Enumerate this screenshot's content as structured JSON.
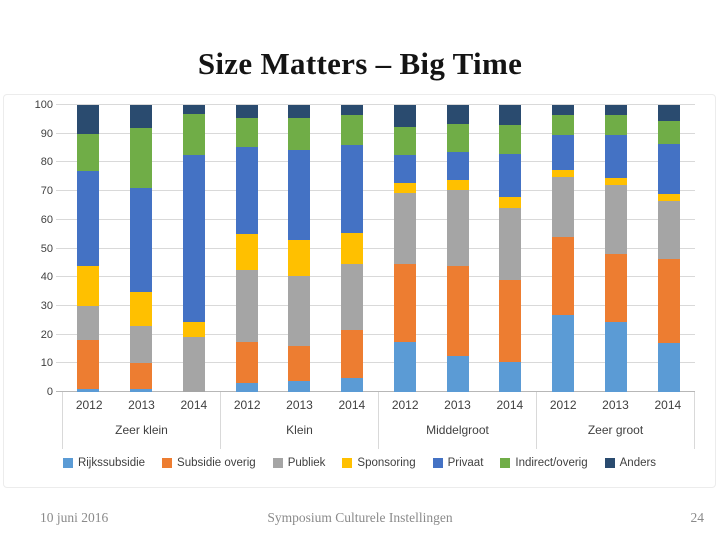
{
  "slide": {
    "title": "Size Matters – Big Time",
    "footer": {
      "date": "10 juni 2016",
      "center": "Symposium Culturele Instellingen",
      "page": "24"
    }
  },
  "chart_data": {
    "type": "bar",
    "stacked": true,
    "units": "percent of total (0-100)",
    "grid": true,
    "legend_position": "bottom",
    "group_labels": [
      "Zeer klein",
      "Klein",
      "Middelgroot",
      "Zeer groot"
    ],
    "year_labels": [
      "2012",
      "2013",
      "2014"
    ],
    "categories": [
      "Zeer klein 2012",
      "Zeer klein 2013",
      "Zeer klein 2014",
      "Klein 2012",
      "Klein 2013",
      "Klein 2014",
      "Middelgroot 2012",
      "Middelgroot 2013",
      "Middelgroot 2014",
      "Zeer groot 2012",
      "Zeer groot 2013",
      "Zeer groot 2014"
    ],
    "y_axis": {
      "min": 0,
      "max": 100,
      "step": 10,
      "ticks": [
        "0",
        "10",
        "20",
        "30",
        "40",
        "50",
        "60",
        "70",
        "80",
        "90",
        "100"
      ]
    },
    "series": [
      {
        "name": "Rijkssubsidie",
        "color": "#5b9bd5",
        "values": [
          1,
          1,
          0,
          3,
          4,
          5,
          17.5,
          12.5,
          10.5,
          27,
          24.5,
          17
        ]
      },
      {
        "name": "Subsidie overig",
        "color": "#ed7d31",
        "values": [
          17,
          9,
          0,
          14.5,
          12,
          16.5,
          27,
          31.5,
          28.5,
          27,
          23.5,
          29.5
        ]
      },
      {
        "name": "Publiek",
        "color": "#a5a5a5",
        "values": [
          12,
          13,
          19,
          25,
          24.5,
          23,
          25,
          26.5,
          25,
          21,
          24,
          20
        ]
      },
      {
        "name": "Sponsoring",
        "color": "#ffc000",
        "values": [
          14,
          12,
          5.5,
          12.5,
          12.5,
          11,
          3.5,
          3.5,
          4,
          2.5,
          2.5,
          2.5
        ]
      },
      {
        "name": "Privaat",
        "color": "#4472c4",
        "values": [
          33,
          36,
          58,
          30.5,
          31.5,
          30.5,
          9.5,
          9.5,
          15,
          12,
          15,
          17.5
        ]
      },
      {
        "name": "Indirect/overig",
        "color": "#70ad47",
        "values": [
          13,
          21,
          14.5,
          10,
          11,
          10.5,
          10,
          10,
          10,
          7,
          7,
          8
        ]
      },
      {
        "name": "Anders",
        "color": "#2a4b6f",
        "values": [
          10,
          8,
          3,
          4.5,
          4.5,
          3.5,
          7.5,
          6.5,
          7,
          3.5,
          3.5,
          5.5
        ]
      }
    ]
  }
}
